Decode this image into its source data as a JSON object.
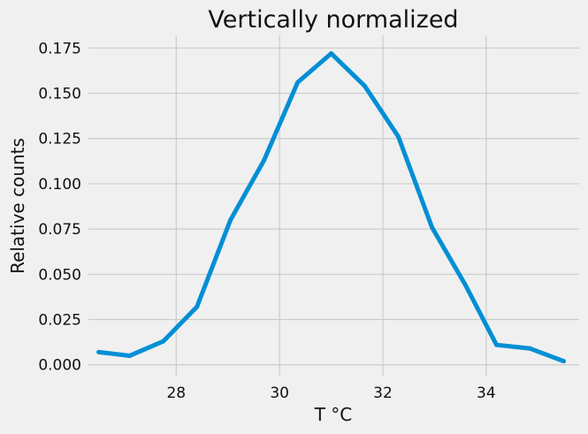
{
  "chart_data": {
    "type": "line",
    "title": "Vertically normalized",
    "xlabel": "T °C",
    "ylabel": "Relative counts",
    "xlim": [
      26.3,
      35.8
    ],
    "ylim": [
      -0.006,
      0.182
    ],
    "x_ticks": [
      28,
      30,
      32,
      34
    ],
    "y_ticks": [
      0.0,
      0.025,
      0.05,
      0.075,
      0.1,
      0.125,
      0.15,
      0.175
    ],
    "x_tick_labels": [
      "28",
      "30",
      "32",
      "34"
    ],
    "y_tick_labels": [
      "0.000",
      "0.025",
      "0.050",
      "0.075",
      "0.100",
      "0.125",
      "0.150",
      "0.175"
    ],
    "grid": true,
    "series": [
      {
        "color": "#008fd5",
        "x": [
          26.5,
          27.1,
          27.75,
          28.4,
          29.05,
          29.7,
          30.35,
          31.0,
          31.65,
          32.3,
          32.95,
          33.6,
          34.2,
          34.85,
          35.5
        ],
        "y": [
          0.007,
          0.005,
          0.013,
          0.032,
          0.08,
          0.113,
          0.156,
          0.172,
          0.154,
          0.126,
          0.076,
          0.044,
          0.011,
          0.009,
          0.002
        ]
      }
    ]
  }
}
